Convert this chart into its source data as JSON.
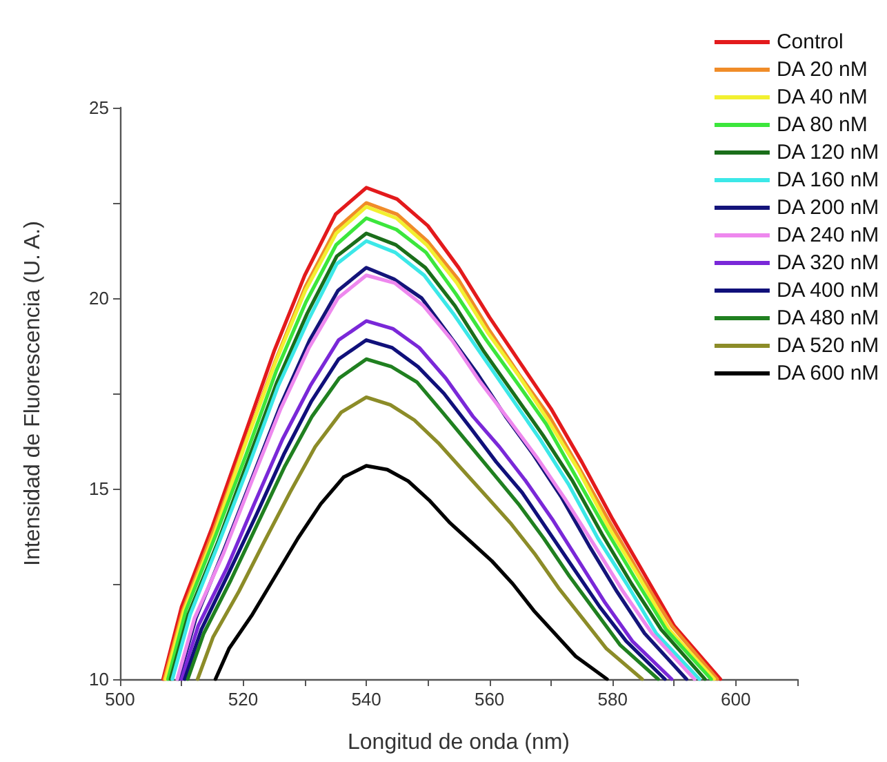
{
  "chart_data": {
    "type": "line",
    "xlabel": "Longitud de onda (nm)",
    "ylabel": "Intensidad de Fluorescencia (U. A.)",
    "xlim": [
      500,
      610
    ],
    "xticks": [
      500,
      {
        "value": 510,
        "label": null
      },
      520,
      {
        "value": 530,
        "label": null
      },
      540,
      {
        "value": 550,
        "label": null
      },
      560,
      {
        "value": 570,
        "label": null
      },
      580,
      {
        "value": 590,
        "label": null
      },
      600,
      {
        "value": 610,
        "label": null
      }
    ],
    "ylim": [
      10,
      25
    ],
    "yticks": [
      10,
      {
        "value": 12.5,
        "label": null
      },
      15,
      {
        "value": 17.5,
        "label": null
      },
      20,
      {
        "value": 22.5,
        "label": null
      },
      25
    ],
    "grid": false,
    "legend": "top right",
    "marker": "none",
    "line_style": "solid",
    "series": [
      {
        "name": "Control",
        "color": "#e31a1c",
        "x": [
          507,
          510,
          515,
          520,
          525,
          530,
          535,
          540,
          545,
          550,
          555,
          560,
          565,
          570,
          575,
          580,
          585,
          590,
          597.5
        ],
        "values": [
          10,
          11.9,
          14,
          16.3,
          18.6,
          20.6,
          22.2,
          22.9,
          22.6,
          21.9,
          20.8,
          19.5,
          18.3,
          17.1,
          15.7,
          14.2,
          12.8,
          11.4,
          10
        ]
      },
      {
        "name": "DA 20 nM",
        "color": "#f08c28",
        "x": [
          507.2,
          510.2,
          515.2,
          520.1,
          525.1,
          530.1,
          535,
          540,
          545,
          549.9,
          554.9,
          559.8,
          564.8,
          569.7,
          574.7,
          579.6,
          584.6,
          589.6,
          597
        ],
        "values": [
          10,
          11.8,
          13.9,
          16.1,
          18.3,
          20.3,
          21.8,
          22.5,
          22.2,
          21.5,
          20.5,
          19.2,
          18,
          16.9,
          15.5,
          14.1,
          12.7,
          11.4,
          10
        ]
      },
      {
        "name": "DA 40 nM",
        "color": "#f2f030",
        "x": [
          507.4,
          510.4,
          515.3,
          520.2,
          525.2,
          530.1,
          535.1,
          540,
          544.9,
          549.8,
          554.7,
          559.7,
          564.6,
          569.5,
          574.4,
          579.3,
          584.2,
          589.2,
          596.5
        ],
        "values": [
          10,
          11.8,
          13.8,
          16.1,
          18.3,
          20.2,
          21.7,
          22.4,
          22.1,
          21.4,
          20.4,
          19.1,
          18,
          16.8,
          15.5,
          14,
          12.7,
          11.3,
          10
        ]
      },
      {
        "name": "DA 80 nM",
        "color": "#3ce63c",
        "x": [
          507.8,
          510.7,
          515.6,
          520.5,
          525.4,
          530.2,
          535.1,
          540,
          544.9,
          549.7,
          554.6,
          559.5,
          564.4,
          569.2,
          574.1,
          579,
          583.8,
          588.7,
          596
        ],
        "values": [
          10,
          11.8,
          13.8,
          15.9,
          18.1,
          19.9,
          21.4,
          22.1,
          21.8,
          21.2,
          20.1,
          18.9,
          17.8,
          16.7,
          15.3,
          13.9,
          12.6,
          11.3,
          10
        ]
      },
      {
        "name": "DA 120 nM",
        "color": "#1a6e1a",
        "x": [
          508.2,
          511.1,
          515.9,
          520.7,
          525.5,
          530.4,
          535.2,
          540,
          544.8,
          549.6,
          554.4,
          559.1,
          563.9,
          568.7,
          573.5,
          578.3,
          583.1,
          587.9,
          595
        ],
        "values": [
          10,
          11.7,
          13.6,
          15.7,
          17.8,
          19.6,
          21.1,
          21.7,
          21.4,
          20.8,
          19.8,
          18.6,
          17.5,
          16.4,
          15.2,
          13.8,
          12.5,
          11.3,
          10
        ]
      },
      {
        "name": "DA 160 nM",
        "color": "#3ce8e8",
        "x": [
          508.5,
          511.4,
          516.1,
          520.9,
          525.7,
          530.5,
          535.2,
          540,
          544.7,
          549.4,
          554.1,
          558.8,
          563.5,
          568.2,
          572.9,
          577.6,
          582.3,
          587.1,
          594.1
        ],
        "values": [
          10,
          11.7,
          13.6,
          15.6,
          17.7,
          19.4,
          20.9,
          21.5,
          21.2,
          20.6,
          19.6,
          18.5,
          17.4,
          16.3,
          15.1,
          13.7,
          12.5,
          11.2,
          10
        ]
      },
      {
        "name": "DA 200 nM",
        "color": "#14147a",
        "x": [
          509.5,
          512.3,
          516.9,
          521.5,
          526.1,
          530.8,
          535.4,
          540,
          544.5,
          549,
          553.6,
          558.1,
          562.6,
          567.1,
          571.6,
          576.2,
          580.7,
          585.2,
          592
        ],
        "values": [
          10,
          11.6,
          13.4,
          15.3,
          17.2,
          18.9,
          20.2,
          20.8,
          20.5,
          20,
          19,
          18,
          16.9,
          15.9,
          14.8,
          13.5,
          12.3,
          11.2,
          10
        ]
      },
      {
        "name": "DA 240 nM",
        "color": "#ee88ee",
        "x": [
          509.3,
          512.1,
          516.8,
          521.4,
          526.1,
          530.7,
          535.4,
          540,
          544.6,
          549.3,
          553.9,
          558.5,
          563.2,
          567.8,
          572.4,
          577.1,
          581.7,
          586.4,
          593.3
        ],
        "values": [
          10,
          11.6,
          13.3,
          15.2,
          17.1,
          18.7,
          20,
          20.6,
          20.4,
          19.8,
          18.9,
          17.8,
          16.8,
          15.8,
          14.7,
          13.5,
          12.3,
          11.2,
          10
        ]
      },
      {
        "name": "DA 320 nM",
        "color": "#7a28d8",
        "x": [
          510,
          512.7,
          517.3,
          521.8,
          526.4,
          530.9,
          535.5,
          540,
          544.3,
          548.6,
          552.9,
          557.3,
          561.6,
          565.9,
          570.2,
          574.5,
          578.8,
          583.2,
          589.6
        ],
        "values": [
          10,
          11.4,
          12.9,
          14.6,
          16.3,
          17.7,
          18.9,
          19.4,
          19.2,
          18.7,
          17.9,
          16.9,
          16.1,
          15.2,
          14.2,
          13.1,
          12,
          11,
          10
        ]
      },
      {
        "name": "DA 400 nM",
        "color": "#10107a",
        "x": [
          510.5,
          513.2,
          517.7,
          522.1,
          526.6,
          531.1,
          535.5,
          540,
          544.2,
          548.4,
          552.6,
          556.9,
          561.1,
          565.3,
          569.5,
          573.7,
          577.9,
          582.2,
          588.5
        ],
        "values": [
          10,
          11.3,
          12.8,
          14.3,
          15.9,
          17.3,
          18.4,
          18.9,
          18.7,
          18.2,
          17.5,
          16.6,
          15.7,
          14.9,
          13.9,
          12.9,
          11.9,
          11,
          10
        ]
      },
      {
        "name": "DA 480 nM",
        "color": "#208020",
        "x": [
          511,
          513.6,
          518,
          522.4,
          526.8,
          531.2,
          535.6,
          540,
          544.1,
          548.2,
          552.4,
          556.5,
          560.6,
          564.7,
          568.8,
          573,
          577.1,
          581.2,
          587.4
        ],
        "values": [
          10,
          11.2,
          12.6,
          14.1,
          15.6,
          16.9,
          17.9,
          18.4,
          18.2,
          17.8,
          17,
          16.2,
          15.4,
          14.6,
          13.7,
          12.7,
          11.8,
          10.9,
          10
        ]
      },
      {
        "name": "DA 520 nM",
        "color": "#8c8c28",
        "x": [
          512.6,
          515.1,
          519.3,
          523.4,
          527.6,
          531.7,
          535.9,
          540,
          543.9,
          547.8,
          551.7,
          555.6,
          559.5,
          563.4,
          567.3,
          571.2,
          575.1,
          579,
          584.8
        ],
        "values": [
          10,
          11.1,
          12.3,
          13.6,
          14.9,
          16.1,
          17,
          17.4,
          17.2,
          16.8,
          16.2,
          15.5,
          14.8,
          14.1,
          13.3,
          12.4,
          11.6,
          10.8,
          10
        ]
      },
      {
        "name": "DA 600 nM",
        "color": "#000000",
        "x": [
          515.5,
          517.7,
          521.5,
          525.2,
          528.9,
          532.6,
          536.3,
          540,
          543.4,
          546.8,
          550.2,
          553.6,
          557,
          560.4,
          563.8,
          567.2,
          570.6,
          574,
          579.1
        ],
        "values": [
          10,
          10.8,
          11.7,
          12.7,
          13.7,
          14.6,
          15.3,
          15.6,
          15.5,
          15.2,
          14.7,
          14.1,
          13.6,
          13.1,
          12.5,
          11.8,
          11.2,
          10.6,
          10
        ]
      }
    ]
  }
}
